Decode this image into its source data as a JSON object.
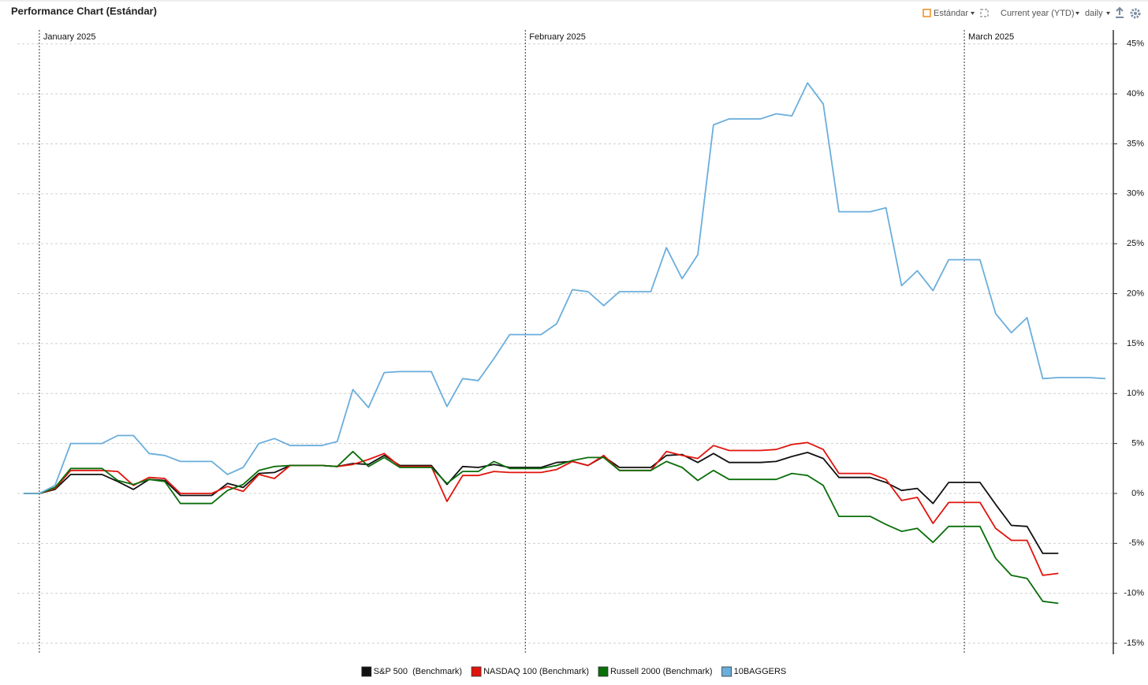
{
  "toolbar": {
    "view": "Estándar",
    "range": "Current year (YTD)",
    "interval": "daily"
  },
  "chart_data": {
    "type": "line",
    "title": "Performance Chart (Estándar)",
    "categories": [
      null,
      "January 2025",
      null,
      null,
      null,
      null,
      null,
      null,
      null,
      null,
      null,
      null,
      null,
      null,
      null,
      null,
      null,
      null,
      null,
      null,
      null,
      null,
      null,
      null,
      null,
      null,
      null,
      null,
      null,
      null,
      null,
      null,
      "February 2025",
      null,
      null,
      null,
      null,
      null,
      null,
      null,
      null,
      null,
      null,
      null,
      null,
      null,
      null,
      null,
      null,
      null,
      null,
      null,
      null,
      null,
      null,
      null,
      null,
      null,
      null,
      null,
      "March 2025",
      null,
      null,
      null,
      null,
      null,
      null,
      null,
      null,
      null
    ],
    "series": [
      {
        "name": "S&P 500  (Benchmark)",
        "color": "#111111",
        "values": [
          0,
          0,
          0.4,
          1.9,
          1.9,
          1.9,
          1.2,
          0.4,
          1.4,
          1.3,
          -0.2,
          -0.2,
          -0.2,
          1.0,
          0.6,
          2.0,
          2.1,
          2.8,
          2.8,
          2.8,
          2.7,
          3.0,
          2.9,
          3.8,
          2.8,
          2.8,
          2.8,
          0.9,
          2.7,
          2.6,
          2.9,
          2.6,
          2.6,
          2.6,
          3.1,
          3.2,
          2.8,
          3.7,
          2.6,
          2.6,
          2.6,
          3.8,
          3.9,
          3.1,
          4.0,
          3.1,
          3.1,
          3.1,
          3.2,
          3.7,
          4.1,
          3.5,
          1.6,
          1.6,
          1.6,
          1.1,
          0.3,
          0.5,
          -1.0,
          1.1,
          1.1,
          1.1,
          -1.1,
          -3.2,
          -3.3,
          -6.0,
          -6.0,
          null,
          null,
          null
        ]
      },
      {
        "name": "NASDAQ 100 (Benchmark)",
        "color": "#e0140c",
        "values": [
          0,
          0,
          0.5,
          2.3,
          2.3,
          2.3,
          2.2,
          0.8,
          1.6,
          1.5,
          0.0,
          0.0,
          0.0,
          0.7,
          0.2,
          1.9,
          1.5,
          2.8,
          2.8,
          2.8,
          2.7,
          2.9,
          3.4,
          4.0,
          2.7,
          2.7,
          2.7,
          -0.8,
          1.8,
          1.8,
          2.2,
          2.1,
          2.1,
          2.1,
          2.4,
          3.2,
          2.8,
          3.8,
          2.3,
          2.3,
          2.3,
          4.2,
          3.8,
          3.5,
          4.8,
          4.3,
          4.3,
          4.3,
          4.4,
          4.9,
          5.1,
          4.4,
          2.0,
          2.0,
          2.0,
          1.4,
          -0.7,
          -0.4,
          -3.0,
          -0.9,
          -0.9,
          -0.9,
          -3.5,
          -4.7,
          -4.7,
          -8.2,
          -8.0,
          null,
          null,
          null
        ]
      },
      {
        "name": "Russell 2000 (Benchmark)",
        "color": "#0a6e0a",
        "values": [
          0,
          0,
          0.6,
          2.5,
          2.5,
          2.5,
          1.3,
          0.9,
          1.4,
          1.2,
          -1.0,
          -1.0,
          -1.0,
          0.3,
          0.9,
          2.3,
          2.7,
          2.8,
          2.8,
          2.8,
          2.7,
          4.2,
          2.7,
          3.6,
          2.6,
          2.6,
          2.6,
          1.0,
          2.2,
          2.2,
          3.2,
          2.5,
          2.5,
          2.5,
          2.8,
          3.3,
          3.6,
          3.6,
          2.3,
          2.3,
          2.3,
          3.2,
          2.6,
          1.3,
          2.3,
          1.4,
          1.4,
          1.4,
          1.4,
          2.0,
          1.8,
          0.8,
          -2.3,
          -2.3,
          -2.3,
          -3.1,
          -3.8,
          -3.5,
          -4.9,
          -3.3,
          -3.3,
          -3.3,
          -6.5,
          -8.2,
          -8.5,
          -10.8,
          -11.0,
          null,
          null,
          null
        ]
      },
      {
        "name": "10BAGGERS",
        "color": "#6aaedc",
        "values": [
          0,
          0,
          0.8,
          5.0,
          5.0,
          5.0,
          5.8,
          5.8,
          4.0,
          3.8,
          3.2,
          3.2,
          3.2,
          1.9,
          2.6,
          5.0,
          5.5,
          4.8,
          4.8,
          4.8,
          5.2,
          10.4,
          8.6,
          12.1,
          12.2,
          12.2,
          12.2,
          8.7,
          11.5,
          11.3,
          13.5,
          15.9,
          15.9,
          15.9,
          17.0,
          20.4,
          20.2,
          18.8,
          20.2,
          20.2,
          20.2,
          24.6,
          21.5,
          23.9,
          36.9,
          37.5,
          37.5,
          37.5,
          38.0,
          37.8,
          41.1,
          39.0,
          28.2,
          28.2,
          28.2,
          28.6,
          20.8,
          22.3,
          20.3,
          23.4,
          23.4,
          23.4,
          18.0,
          16.1,
          17.6,
          11.5,
          11.6,
          11.6,
          11.6,
          11.5
        ]
      }
    ],
    "ylim": [
      -16.1,
      46.4
    ],
    "yticks": [
      {
        "value": 45,
        "label": "45%"
      },
      {
        "value": 40,
        "label": "40%"
      },
      {
        "value": 35,
        "label": "35%"
      },
      {
        "value": 30,
        "label": "30%"
      },
      {
        "value": 25,
        "label": "25%"
      },
      {
        "value": 20,
        "label": "20%"
      },
      {
        "value": 15,
        "label": "15%"
      },
      {
        "value": 10,
        "label": "10%"
      },
      {
        "value": 5,
        "label": "5%"
      },
      {
        "value": 0,
        "label": "0%"
      },
      {
        "value": -5,
        "label": "-5%"
      },
      {
        "value": -10,
        "label": "-10%"
      },
      {
        "value": -15,
        "label": "-15%"
      }
    ],
    "grid": true,
    "legend": "bottom"
  }
}
